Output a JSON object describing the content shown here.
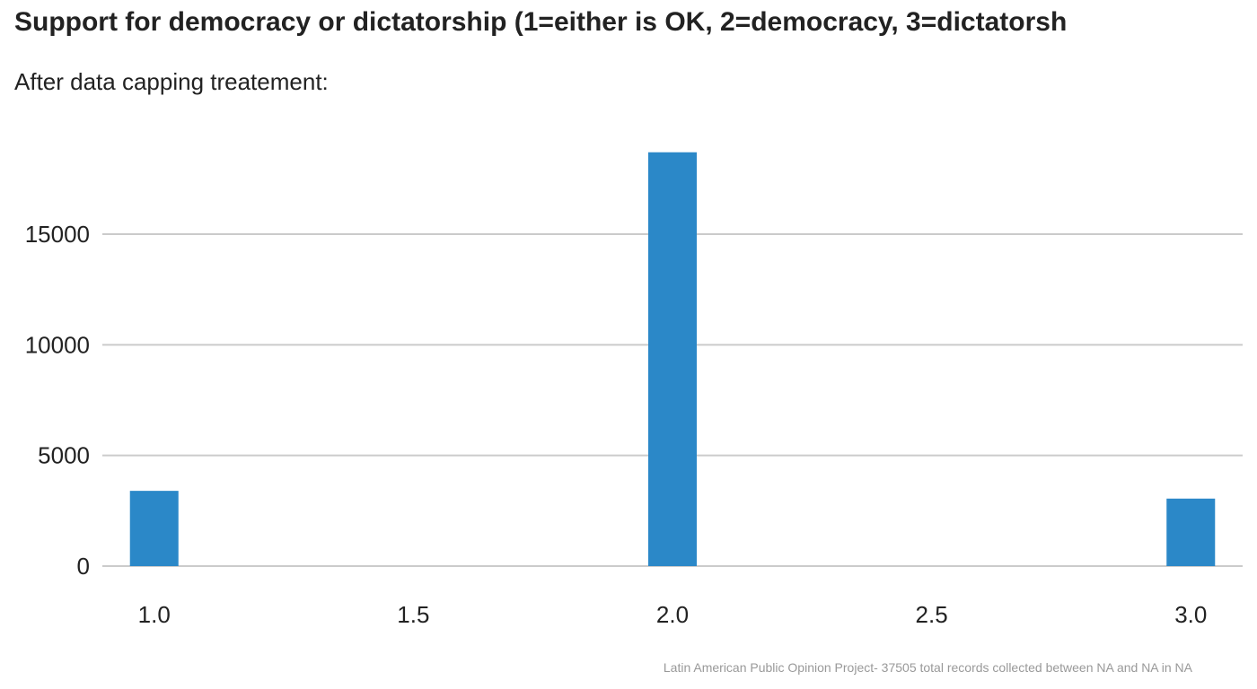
{
  "chart_data": {
    "type": "bar",
    "title": "Support for democracy or dictatorship (1=either is OK, 2=democracy, 3=dictatorsh",
    "subtitle": "After data capping treatement:",
    "caption": "Latin American Public Opinion Project- 37505 total records collected between NA and NA in  NA",
    "xlabel": "",
    "ylabel": "",
    "x": [
      1.0,
      2.0,
      3.0
    ],
    "values": [
      3400,
      18700,
      3050
    ],
    "xlim": [
      0.9,
      3.1
    ],
    "ylim": [
      0,
      19500
    ],
    "x_ticks": [
      1.0,
      1.5,
      2.0,
      2.5,
      3.0
    ],
    "x_tick_labels": [
      "1.0",
      "1.5",
      "2.0",
      "2.5",
      "3.0"
    ],
    "y_ticks": [
      0,
      5000,
      10000,
      15000
    ],
    "y_tick_labels": [
      "0",
      "5000",
      "10000",
      "15000"
    ],
    "grid": true,
    "bar_color": "#2b88c8",
    "grid_color": "#cbcbcb",
    "caption_color": "#999999"
  }
}
